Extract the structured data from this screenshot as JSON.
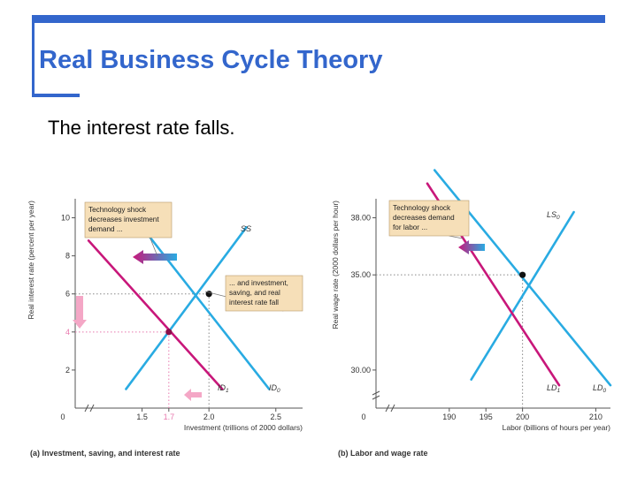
{
  "slide": {
    "title": "Real Business Cycle Theory",
    "subtitle": "The interest rate falls."
  },
  "colors": {
    "accent": "#3366cc",
    "blue_line": "#29abe2",
    "magenta_line": "#c8177a",
    "callout_bg": "#f6dfb8",
    "pink_arrow": "#f4a7c6",
    "dot_guide": "#e879ae"
  },
  "chart_data": [
    {
      "type": "line",
      "caption": "(a) Investment, saving, and interest rate",
      "xlabel": "Investment (trillions of 2000 dollars)",
      "ylabel": "Real interest rate (percent per year)",
      "xlim": [
        1.0,
        2.7
      ],
      "ylim": [
        0,
        11
      ],
      "x_break": true,
      "x_ticks": [
        {
          "v": 1.5,
          "label": "1.5"
        },
        {
          "v": 1.7,
          "label": "1.7",
          "highlight": true
        },
        {
          "v": 2.0,
          "label": "2.0"
        },
        {
          "v": 2.5,
          "label": "2.5"
        }
      ],
      "y_ticks": [
        {
          "v": 2,
          "label": "2"
        },
        {
          "v": 4,
          "label": "4",
          "highlight": true
        },
        {
          "v": 6,
          "label": "6"
        },
        {
          "v": 8,
          "label": "8"
        },
        {
          "v": 10,
          "label": "10"
        }
      ],
      "origin_label": "0",
      "series": [
        {
          "name": "SS",
          "color": "#29abe2",
          "points": [
            [
              1.38,
              1.0
            ],
            [
              2.28,
              9.5
            ]
          ]
        },
        {
          "name": "ID0",
          "color": "#29abe2",
          "points": [
            [
              1.4,
              10.4
            ],
            [
              2.45,
              1.0
            ]
          ]
        },
        {
          "name": "ID1",
          "color": "#c8177a",
          "points": [
            [
              1.1,
              8.8
            ],
            [
              2.1,
              1.0
            ]
          ]
        }
      ],
      "equilibria": [
        [
          2.0,
          6.0
        ],
        [
          1.7,
          4.0
        ]
      ],
      "guides": [
        {
          "from": [
            1.0,
            6.0
          ],
          "to": [
            2.0,
            6.0
          ],
          "color": "#888888"
        },
        {
          "from": [
            2.0,
            0.0
          ],
          "to": [
            2.0,
            6.0
          ],
          "color": "#888888"
        },
        {
          "from": [
            1.0,
            4.0
          ],
          "to": [
            1.7,
            4.0
          ],
          "color": "#e879ae"
        },
        {
          "from": [
            1.7,
            0.0
          ],
          "to": [
            1.7,
            4.0
          ],
          "color": "#e879ae"
        }
      ],
      "annotations": [
        {
          "text": [
            "Technology shock",
            "decreases investment",
            "demand ..."
          ]
        },
        {
          "text": [
            "... and investment,",
            "saving, and real",
            "interest rate fall"
          ]
        }
      ]
    },
    {
      "type": "line",
      "caption": "(b) Labor and wage rate",
      "xlabel": "Labor (billions of hours per year)",
      "ylabel": "Real wage rate (2000 dollars per hour)",
      "xlim": [
        180,
        212
      ],
      "ylim": [
        28,
        39
      ],
      "x_break": true,
      "y_break": true,
      "x_ticks": [
        {
          "v": 190,
          "label": "190"
        },
        {
          "v": 195,
          "label": "195"
        },
        {
          "v": 200,
          "label": "200"
        },
        {
          "v": 210,
          "label": "210"
        }
      ],
      "y_ticks": [
        {
          "v": 30,
          "label": "30.00"
        },
        {
          "v": 35,
          "label": "35.00"
        },
        {
          "v": 38,
          "label": "38.00"
        }
      ],
      "origin_label": "0",
      "series": [
        {
          "name": "LS0",
          "color": "#29abe2",
          "points": [
            [
              193,
              29.5
            ],
            [
              207,
              38.3
            ]
          ]
        },
        {
          "name": "LD0",
          "color": "#29abe2",
          "points": [
            [
              188,
              40.5
            ],
            [
              212,
              29.2
            ]
          ]
        },
        {
          "name": "LD1",
          "color": "#c8177a",
          "points": [
            [
              187,
              39.8
            ],
            [
              205,
              29.2
            ]
          ]
        }
      ],
      "equilibria": [
        [
          200,
          35.0
        ]
      ],
      "guides": [
        {
          "from": [
            180,
            35.0
          ],
          "to": [
            200,
            35.0
          ],
          "color": "#888888"
        },
        {
          "from": [
            200,
            28
          ],
          "to": [
            200,
            35.0
          ],
          "color": "#888888"
        }
      ],
      "annotations": [
        {
          "text": [
            "Technology shock",
            "decreases demand",
            "for labor ..."
          ]
        }
      ]
    }
  ]
}
